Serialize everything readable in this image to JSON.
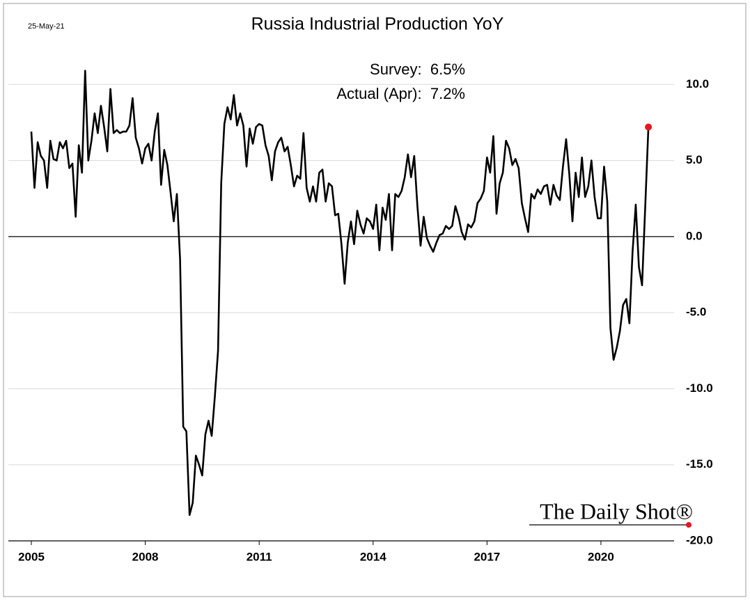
{
  "chart_data": {
    "type": "line",
    "title": "Russia Industrial Production YoY",
    "date_label": "25-May-21",
    "annotations": [
      "Survey:  6.5%",
      "Actual (Apr):  7.2%"
    ],
    "source": "The Daily Shot®",
    "x": [
      2005,
      2005.083,
      2005.167,
      2005.25,
      2005.333,
      2005.417,
      2005.5,
      2005.583,
      2005.667,
      2005.75,
      2005.833,
      2005.917,
      2006,
      2006.083,
      2006.167,
      2006.25,
      2006.333,
      2006.417,
      2006.5,
      2006.583,
      2006.667,
      2006.75,
      2006.833,
      2006.917,
      2007,
      2007.083,
      2007.167,
      2007.25,
      2007.333,
      2007.417,
      2007.5,
      2007.583,
      2007.667,
      2007.75,
      2007.833,
      2007.917,
      2008,
      2008.083,
      2008.167,
      2008.25,
      2008.333,
      2008.417,
      2008.5,
      2008.583,
      2008.667,
      2008.75,
      2008.833,
      2008.917,
      2009,
      2009.083,
      2009.167,
      2009.25,
      2009.333,
      2009.417,
      2009.5,
      2009.583,
      2009.667,
      2009.75,
      2009.833,
      2009.917,
      2010,
      2010.083,
      2010.167,
      2010.25,
      2010.333,
      2010.417,
      2010.5,
      2010.583,
      2010.667,
      2010.75,
      2010.833,
      2010.917,
      2011,
      2011.083,
      2011.167,
      2011.25,
      2011.333,
      2011.417,
      2011.5,
      2011.583,
      2011.667,
      2011.75,
      2011.833,
      2011.917,
      2012,
      2012.083,
      2012.167,
      2012.25,
      2012.333,
      2012.417,
      2012.5,
      2012.583,
      2012.667,
      2012.75,
      2012.833,
      2012.917,
      2013,
      2013.083,
      2013.167,
      2013.25,
      2013.333,
      2013.417,
      2013.5,
      2013.583,
      2013.667,
      2013.75,
      2013.833,
      2013.917,
      2014,
      2014.083,
      2014.167,
      2014.25,
      2014.333,
      2014.417,
      2014.5,
      2014.583,
      2014.667,
      2014.75,
      2014.833,
      2014.917,
      2015,
      2015.083,
      2015.167,
      2015.25,
      2015.333,
      2015.417,
      2015.5,
      2015.583,
      2015.667,
      2015.75,
      2015.833,
      2015.917,
      2016,
      2016.083,
      2016.167,
      2016.25,
      2016.333,
      2016.417,
      2016.5,
      2016.583,
      2016.667,
      2016.75,
      2016.833,
      2016.917,
      2017,
      2017.083,
      2017.167,
      2017.25,
      2017.333,
      2017.417,
      2017.5,
      2017.583,
      2017.667,
      2017.75,
      2017.833,
      2017.917,
      2018,
      2018.083,
      2018.167,
      2018.25,
      2018.333,
      2018.417,
      2018.5,
      2018.583,
      2018.667,
      2018.75,
      2018.833,
      2018.917,
      2019,
      2019.083,
      2019.167,
      2019.25,
      2019.333,
      2019.417,
      2019.5,
      2019.583,
      2019.667,
      2019.75,
      2019.833,
      2019.917,
      2020,
      2020.083,
      2020.167,
      2020.25,
      2020.333,
      2020.417,
      2020.5,
      2020.583,
      2020.667,
      2020.75,
      2020.833,
      2020.917,
      2021,
      2021.083,
      2021.167,
      2021.25
    ],
    "series": [
      {
        "color": "#000000",
        "values": [
          6.9,
          3.2,
          6.2,
          5.3,
          5.0,
          3.2,
          6.3,
          5.1,
          5.0,
          6.2,
          5.8,
          6.3,
          4.5,
          4.8,
          1.3,
          6.0,
          4.2,
          10.9,
          5.0,
          6.3,
          8.1,
          6.8,
          8.6,
          7.2,
          5.6,
          9.7,
          6.8,
          7.0,
          6.8,
          6.9,
          6.9,
          7.3,
          9.1,
          6.5,
          5.8,
          4.8,
          5.8,
          6.1,
          5.0,
          6.9,
          8.1,
          3.4,
          5.7,
          4.7,
          2.9,
          1.0,
          2.8,
          -1.5,
          -12.5,
          -12.8,
          -18.3,
          -17.5,
          -14.4,
          -15.0,
          -15.7,
          -13.0,
          -12.1,
          -13.1,
          -10.5,
          -7.5,
          3.5,
          7.4,
          8.5,
          7.7,
          9.3,
          7.3,
          8.1,
          7.3,
          4.6,
          7.1,
          6.1,
          7.2,
          7.4,
          7.3,
          6.0,
          5.3,
          3.7,
          5.6,
          6.2,
          6.5,
          5.6,
          5.9,
          4.7,
          3.3,
          4.0,
          3.8,
          6.8,
          3.2,
          2.3,
          3.3,
          2.3,
          4.2,
          4.4,
          2.3,
          3.5,
          3.3,
          1.4,
          1.5,
          -0.5,
          -3.1,
          -0.4,
          1.0,
          -0.5,
          1.7,
          0.8,
          0.2,
          1.2,
          1.0,
          0.5,
          2.1,
          -0.9,
          1.9,
          1.1,
          2.8,
          -0.9,
          2.8,
          2.6,
          3.0,
          3.9,
          5.4,
          3.9,
          5.3,
          2.0,
          -0.6,
          1.3,
          -0.1,
          -0.6,
          -1.0,
          -0.4,
          0.1,
          0.2,
          0.7,
          0.5,
          0.7,
          2.0,
          1.3,
          0.3,
          -0.2,
          0.8,
          0.6,
          1.0,
          2.2,
          2.5,
          3.0,
          5.2,
          4.2,
          6.6,
          1.5,
          3.5,
          4.2,
          6.3,
          5.8,
          4.7,
          5.1,
          4.5,
          2.2,
          1.2,
          0.3,
          2.8,
          2.5,
          3.1,
          2.8,
          3.3,
          3.4,
          2.1,
          3.4,
          2.7,
          2.4,
          4.6,
          6.4,
          4.1,
          1.0,
          4.2,
          2.6,
          5.2,
          2.6,
          3.3,
          5.0,
          2.6,
          1.2,
          1.2,
          4.6,
          2.3,
          -6.0,
          -8.1,
          -7.3,
          -6.2,
          -4.5,
          -4.1,
          -5.7,
          -1.0,
          2.1,
          -2.0,
          -3.2,
          2.0,
          7.2
        ]
      }
    ],
    "last_point_color": "#e8161b",
    "xlim": [
      2005,
      2022
    ],
    "xticks": [
      2005,
      2008,
      2011,
      2014,
      2017,
      2020
    ],
    "ylim": [
      -20,
      15
    ],
    "yticks": [
      {
        "value": 10,
        "label": "10.0"
      },
      {
        "value": 5,
        "label": "5.0"
      },
      {
        "value": 0,
        "label": "0.0"
      },
      {
        "value": -5,
        "label": "-5.0"
      },
      {
        "value": -10,
        "label": "-10.0"
      },
      {
        "value": -15,
        "label": "-15.0"
      },
      {
        "value": -20,
        "label": "-20.0"
      }
    ],
    "grid": true
  }
}
